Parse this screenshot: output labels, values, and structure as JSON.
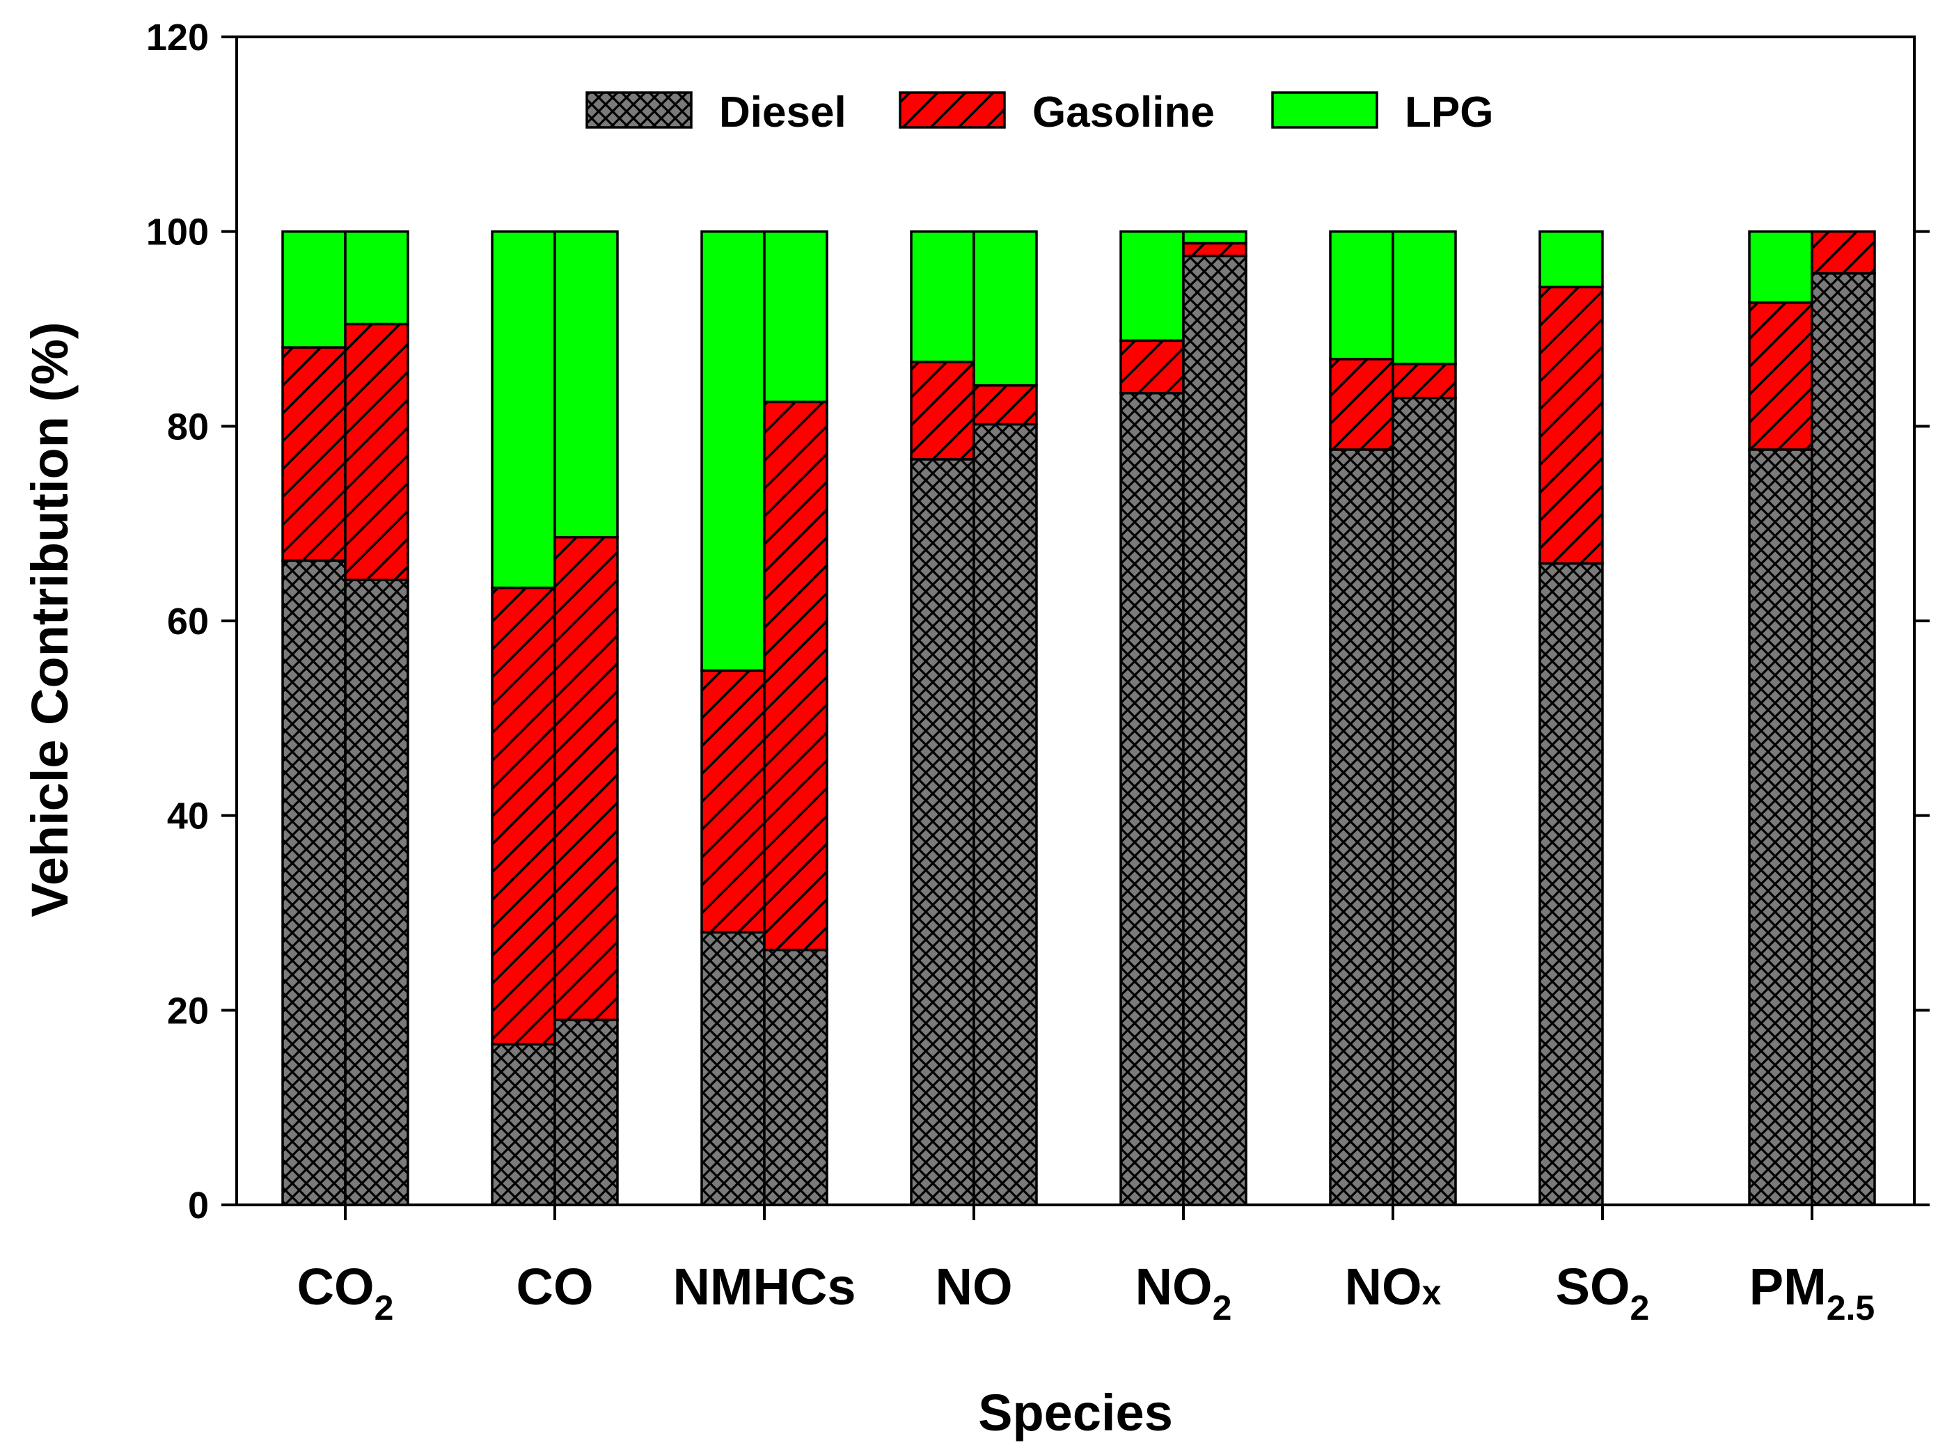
{
  "chart_data": {
    "type": "bar",
    "stacked": true,
    "title": "",
    "xlabel": "Species",
    "ylabel": "Vehicle Contribution (%)",
    "ylim": [
      0,
      120
    ],
    "yticks": [
      0,
      20,
      40,
      60,
      80,
      100,
      120
    ],
    "grid": false,
    "legend_position": "top-center",
    "categories": [
      {
        "main": "CO",
        "sub": "2"
      },
      {
        "main": "CO",
        "sub": ""
      },
      {
        "main": "NMHCs",
        "sub": ""
      },
      {
        "main": "NO",
        "sub": ""
      },
      {
        "main": "NO",
        "sub": "2"
      },
      {
        "main": "NO",
        "sub": "x",
        "sub_baseline": true
      },
      {
        "main": "SO",
        "sub": "2"
      },
      {
        "main": "PM",
        "sub": "2.5"
      }
    ],
    "bars_per_category": 2,
    "series": [
      {
        "name": "Diesel",
        "color": "#7a7a7a",
        "pattern": "crosshatch",
        "values": [
          [
            66.2,
            64.2
          ],
          [
            16.5,
            19.0
          ],
          [
            28.0,
            26.2
          ],
          [
            76.6,
            80.2
          ],
          [
            83.4,
            97.5
          ],
          [
            77.6,
            82.9
          ],
          [
            65.9,
            null
          ],
          [
            77.6,
            95.7
          ]
        ]
      },
      {
        "name": "Gasoline",
        "color": "#ff0000",
        "pattern": "diagonal",
        "values": [
          [
            21.9,
            26.3
          ],
          [
            46.9,
            49.6
          ],
          [
            26.9,
            56.3
          ],
          [
            10.0,
            4.0
          ],
          [
            5.4,
            1.3
          ],
          [
            9.3,
            3.5
          ],
          [
            28.4,
            null
          ],
          [
            15.1,
            4.3
          ]
        ]
      },
      {
        "name": "LPG",
        "color": "#00ff00",
        "pattern": "solid",
        "values": [
          [
            11.9,
            9.5
          ],
          [
            36.6,
            31.4
          ],
          [
            45.1,
            17.5
          ],
          [
            13.4,
            15.8
          ],
          [
            11.2,
            1.2
          ],
          [
            13.1,
            13.6
          ],
          [
            5.7,
            null
          ],
          [
            7.3,
            0.0
          ]
        ]
      }
    ]
  }
}
